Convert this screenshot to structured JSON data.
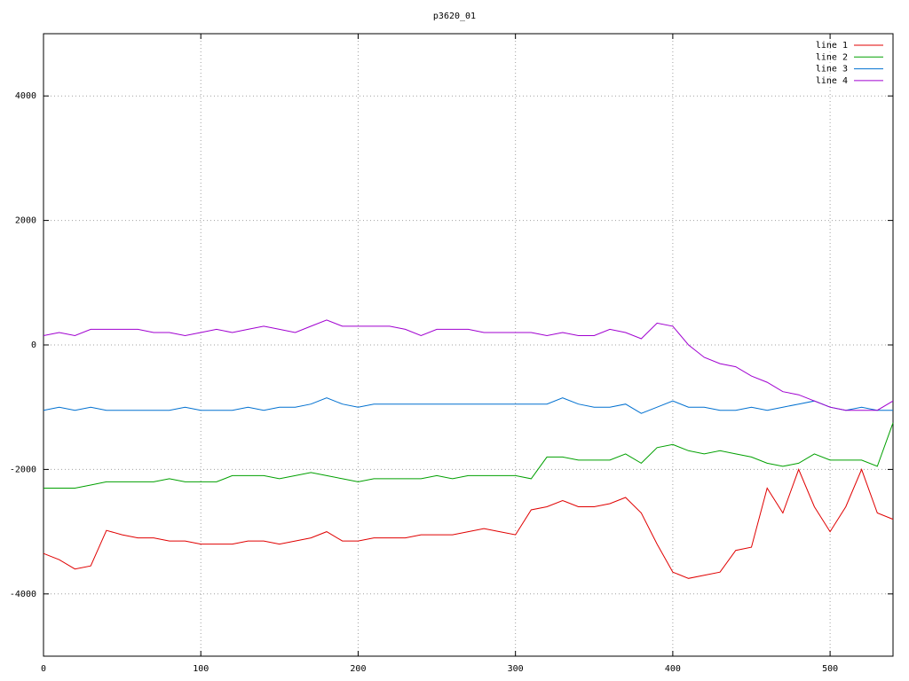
{
  "chart_data": {
    "type": "line",
    "title": "p3620_01",
    "x": [
      0,
      10,
      20,
      30,
      40,
      50,
      60,
      70,
      80,
      90,
      100,
      110,
      120,
      130,
      140,
      150,
      160,
      170,
      180,
      190,
      200,
      210,
      220,
      230,
      240,
      250,
      260,
      270,
      280,
      290,
      300,
      310,
      320,
      330,
      340,
      350,
      360,
      370,
      380,
      390,
      400,
      410,
      420,
      430,
      440,
      450,
      460,
      470,
      480,
      490,
      500,
      510,
      520,
      530,
      540
    ],
    "series": [
      {
        "name": "line 1",
        "color": "#e00000",
        "values": [
          -3350,
          -3450,
          -3600,
          -3550,
          -2980,
          -3050,
          -3100,
          -3100,
          -3150,
          -3150,
          -3200,
          -3200,
          -3200,
          -3150,
          -3150,
          -3200,
          -3150,
          -3100,
          -3000,
          -3150,
          -3150,
          -3100,
          -3100,
          -3100,
          -3050,
          -3050,
          -3050,
          -3000,
          -2950,
          -3000,
          -3050,
          -2650,
          -2600,
          -2500,
          -2600,
          -2600,
          -2550,
          -2450,
          -2700,
          -3200,
          -3650,
          -3750,
          -3700,
          -3650,
          -3300,
          -3250,
          -2300,
          -2700,
          -2000,
          -2600,
          -3000,
          -2600,
          -2000,
          -2700,
          -2800
        ]
      },
      {
        "name": "line 2",
        "color": "#00a000",
        "values": [
          -2300,
          -2300,
          -2300,
          -2250,
          -2200,
          -2200,
          -2200,
          -2200,
          -2150,
          -2200,
          -2200,
          -2200,
          -2100,
          -2100,
          -2100,
          -2150,
          -2100,
          -2050,
          -2100,
          -2150,
          -2200,
          -2150,
          -2150,
          -2150,
          -2150,
          -2100,
          -2150,
          -2100,
          -2100,
          -2100,
          -2100,
          -2150,
          -1800,
          -1800,
          -1850,
          -1850,
          -1850,
          -1750,
          -1900,
          -1650,
          -1600,
          -1700,
          -1750,
          -1700,
          -1750,
          -1800,
          -1900,
          -1950,
          -1900,
          -1750,
          -1850,
          -1850,
          -1850,
          -1950,
          -1250
        ]
      },
      {
        "name": "line 3",
        "color": "#0070d0",
        "values": [
          -1050,
          -1000,
          -1050,
          -1000,
          -1050,
          -1050,
          -1050,
          -1050,
          -1050,
          -1000,
          -1050,
          -1050,
          -1050,
          -1000,
          -1050,
          -1000,
          -1000,
          -950,
          -850,
          -950,
          -1000,
          -950,
          -950,
          -950,
          -950,
          -950,
          -950,
          -950,
          -950,
          -950,
          -950,
          -950,
          -950,
          -850,
          -950,
          -1000,
          -1000,
          -950,
          -1100,
          -1000,
          -900,
          -1000,
          -1000,
          -1050,
          -1050,
          -1000,
          -1050,
          -1000,
          -950,
          -900,
          -1000,
          -1050,
          -1000,
          -1050,
          -1050
        ]
      },
      {
        "name": "line 4",
        "color": "#a000d0",
        "values": [
          150,
          200,
          150,
          250,
          250,
          250,
          250,
          200,
          200,
          150,
          200,
          250,
          200,
          250,
          300,
          250,
          200,
          300,
          400,
          300,
          300,
          300,
          300,
          250,
          150,
          250,
          250,
          250,
          200,
          200,
          200,
          200,
          150,
          200,
          150,
          150,
          250,
          200,
          100,
          350,
          300,
          0,
          -200,
          -300,
          -350,
          -500,
          -600,
          -750,
          -800,
          -900,
          -1000,
          -1050,
          -1050,
          -1050,
          -900
        ]
      }
    ],
    "xlim": [
      0,
      540
    ],
    "ylim": [
      -5000,
      5000
    ],
    "xticks": [
      0,
      100,
      200,
      300,
      400,
      500
    ],
    "yticks": [
      -4000,
      -2000,
      0,
      2000,
      4000
    ],
    "grid": true,
    "legend": "top-right"
  }
}
